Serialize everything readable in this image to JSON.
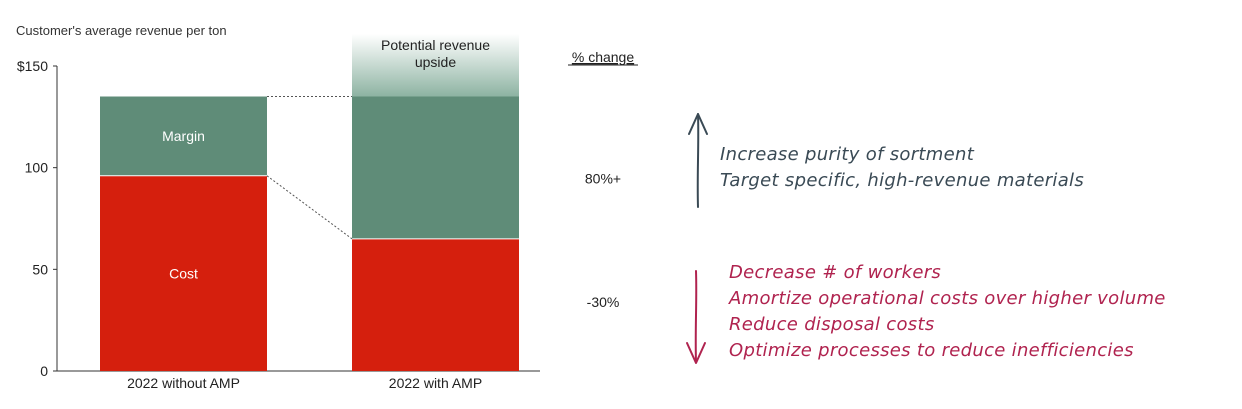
{
  "chart_data": {
    "type": "bar",
    "stacked": true,
    "title": "Customer's average revenue per ton",
    "y_tick_labels": [
      "0",
      "50",
      "100",
      "$150"
    ],
    "ylim": [
      0,
      150
    ],
    "categories": [
      "2022 without AMP",
      "2022 with AMP"
    ],
    "series": [
      {
        "name": "Cost",
        "values": [
          96,
          65
        ],
        "color": "#d51f0d"
      },
      {
        "name": "Margin",
        "values": [
          39,
          70
        ],
        "color": "#5f8c78"
      }
    ],
    "upside": {
      "label_lines": [
        "Potential revenue",
        "upside"
      ],
      "from": 135,
      "to": 150,
      "category": 1,
      "color": "#8db3a2"
    },
    "pct_change_header": "% change",
    "pct_changes": [
      {
        "series": "Margin",
        "value": "80%+"
      },
      {
        "series": "Cost",
        "value": "-30%"
      }
    ],
    "grid": false
  },
  "annotations": {
    "up": {
      "color": "#3a4a55",
      "lines": [
        "Increase purity of sortment",
        "Target specific, high-revenue materials"
      ]
    },
    "down": {
      "color": "#b0234f",
      "lines": [
        "Decrease # of workers",
        "Amortize operational costs over higher volume",
        "Reduce disposal costs",
        "Optimize processes to reduce inefficiencies"
      ]
    }
  }
}
